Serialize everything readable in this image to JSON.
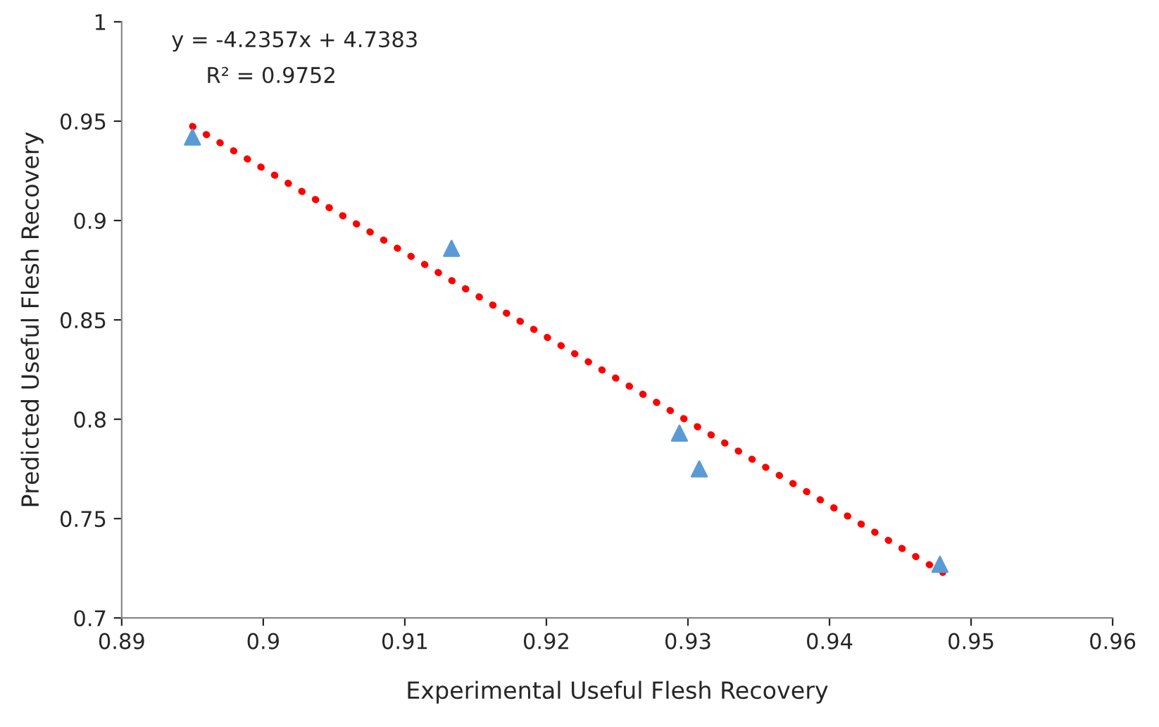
{
  "chart_data": {
    "type": "scatter",
    "xlabel": "Experimental Useful Flesh Recovery",
    "ylabel": "Predicted Useful Flesh Recovery",
    "annotations": [
      "y = -4.2357x + 4.7383",
      "R² = 0.9752"
    ],
    "xlim": [
      0.89,
      0.96
    ],
    "xticks": [
      0.89,
      0.9,
      0.91,
      0.92,
      0.93,
      0.94,
      0.95,
      0.96
    ],
    "ylim": [
      0.7,
      1
    ],
    "yticks": [
      0.7,
      0.75,
      0.8,
      0.85,
      0.9,
      0.95,
      1
    ],
    "grid": false,
    "legend": false,
    "series": [
      {
        "color": "#5b9bd5",
        "marker": "triangle",
        "x": [
          0.895,
          0.9133,
          0.9294,
          0.9308,
          0.9478
        ],
        "values": [
          0.942,
          0.886,
          0.793,
          0.775,
          0.727
        ]
      },
      {
        "type": "line",
        "color": "#ff0000",
        "marker": "none",
        "line_style": "dotted",
        "x": [
          0.895,
          0.948
        ],
        "values": [
          0.9474,
          0.7228
        ]
      }
    ]
  }
}
